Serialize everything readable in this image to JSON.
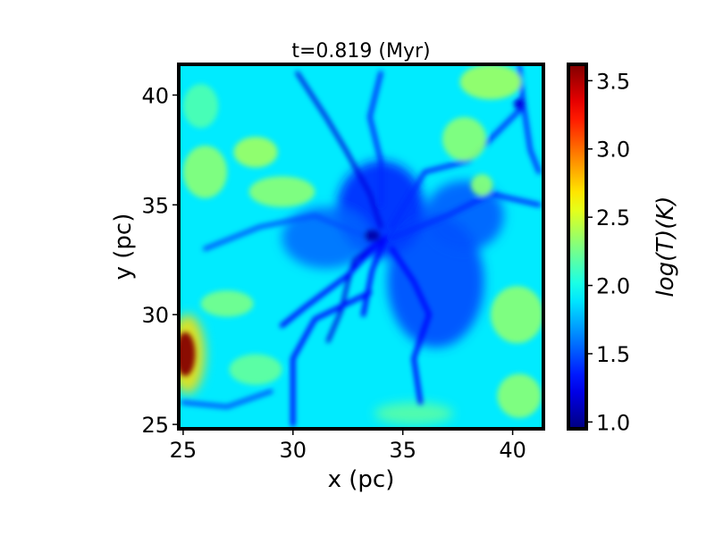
{
  "chart_data": {
    "type": "heatmap",
    "title": "t=0.819 (Myr)",
    "xlabel": "x (pc)",
    "ylabel": "y (pc)",
    "xlim": [
      24.8,
      41.4
    ],
    "ylim": [
      24.8,
      41.4
    ],
    "xticks": [
      25,
      30,
      35,
      40
    ],
    "yticks": [
      25,
      30,
      35,
      40
    ],
    "colorbar": {
      "label": "log(T)(K)",
      "range": [
        0.95,
        3.62
      ],
      "ticks": [
        1.0,
        1.5,
        2.0,
        2.5,
        3.0,
        3.5
      ],
      "colormap": "jet"
    },
    "grid": false,
    "background_level": 1.9,
    "features": [
      {
        "kind": "filament",
        "level": 1.2,
        "points": [
          [
            30.2,
            41.0
          ],
          [
            31.5,
            39.0
          ],
          [
            32.4,
            37.5
          ],
          [
            33.5,
            35.5
          ],
          [
            34.0,
            34.0
          ]
        ]
      },
      {
        "kind": "filament",
        "level": 1.2,
        "points": [
          [
            34.2,
            33.5
          ],
          [
            33.5,
            33.0
          ],
          [
            32.8,
            32.5
          ],
          [
            32.5,
            31.5
          ],
          [
            32.2,
            30.2
          ],
          [
            31.6,
            28.8
          ]
        ]
      },
      {
        "kind": "filament",
        "level": 1.3,
        "points": [
          [
            34.2,
            33.5
          ],
          [
            33.6,
            32.0
          ],
          [
            33.2,
            30.0
          ]
        ]
      },
      {
        "kind": "filament",
        "level": 1.3,
        "points": [
          [
            33.8,
            33.2
          ],
          [
            32.5,
            31.8
          ],
          [
            30.5,
            30.3
          ],
          [
            29.5,
            29.5
          ]
        ]
      },
      {
        "kind": "filament",
        "level": 1.3,
        "points": [
          [
            33.5,
            31.0
          ],
          [
            31.0,
            29.8
          ],
          [
            30.0,
            28.0
          ],
          [
            30.0,
            25.0
          ]
        ]
      },
      {
        "kind": "filament",
        "level": 1.3,
        "points": [
          [
            34.5,
            33.0
          ],
          [
            35.5,
            31.5
          ],
          [
            36.2,
            30.0
          ],
          [
            35.5,
            28.0
          ],
          [
            35.8,
            26.0
          ]
        ]
      },
      {
        "kind": "filament",
        "level": 1.4,
        "points": [
          [
            34.0,
            35.0
          ],
          [
            34.0,
            37.0
          ],
          [
            33.5,
            39.0
          ],
          [
            34.0,
            41.0
          ]
        ]
      },
      {
        "kind": "filament",
        "level": 1.4,
        "points": [
          [
            34.5,
            34.0
          ],
          [
            36.0,
            36.5
          ],
          [
            38.0,
            37.0
          ],
          [
            40.5,
            39.5
          ]
        ]
      },
      {
        "kind": "filament",
        "level": 1.4,
        "points": [
          [
            34.5,
            33.5
          ],
          [
            37.0,
            34.5
          ],
          [
            39.0,
            35.5
          ],
          [
            41.2,
            35.0
          ]
        ]
      },
      {
        "kind": "filament",
        "level": 1.4,
        "points": [
          [
            40.3,
            41.3
          ],
          [
            40.5,
            39.5
          ],
          [
            40.8,
            37.5
          ],
          [
            41.2,
            36.5
          ]
        ]
      },
      {
        "kind": "filament",
        "level": 1.5,
        "points": [
          [
            33.5,
            33.5
          ],
          [
            31.0,
            34.5
          ],
          [
            28.5,
            34.0
          ],
          [
            26.0,
            33.0
          ]
        ]
      },
      {
        "kind": "filament",
        "level": 1.5,
        "points": [
          [
            25.0,
            26.0
          ],
          [
            27.0,
            25.8
          ],
          [
            29.0,
            26.5
          ]
        ]
      },
      {
        "kind": "blob",
        "level": 1.35,
        "cx": 34.0,
        "cy": 34.8,
        "rx": 2.0,
        "ry": 2.2
      },
      {
        "kind": "blob",
        "level": 1.45,
        "cx": 36.5,
        "cy": 31.5,
        "rx": 2.2,
        "ry": 3.0
      },
      {
        "kind": "blob",
        "level": 1.5,
        "cx": 37.8,
        "cy": 34.5,
        "rx": 1.8,
        "ry": 1.6
      },
      {
        "kind": "blob",
        "level": 1.55,
        "cx": 31.5,
        "cy": 33.5,
        "rx": 2.0,
        "ry": 1.4
      },
      {
        "kind": "blob",
        "level": 1.05,
        "cx": 33.6,
        "cy": 33.6,
        "rx": 0.35,
        "ry": 0.25
      },
      {
        "kind": "blob",
        "level": 1.2,
        "cx": 40.3,
        "cy": 39.6,
        "rx": 0.25,
        "ry": 0.25
      },
      {
        "kind": "blob",
        "level": 2.35,
        "cx": 28.3,
        "cy": 37.4,
        "rx": 1.0,
        "ry": 0.7
      },
      {
        "kind": "blob",
        "level": 2.35,
        "cx": 39.0,
        "cy": 40.6,
        "rx": 1.4,
        "ry": 0.8
      },
      {
        "kind": "blob",
        "level": 2.3,
        "cx": 26.0,
        "cy": 36.5,
        "rx": 1.0,
        "ry": 1.2
      },
      {
        "kind": "blob",
        "level": 2.3,
        "cx": 29.5,
        "cy": 35.6,
        "rx": 1.5,
        "ry": 0.7
      },
      {
        "kind": "blob",
        "level": 2.3,
        "cx": 38.6,
        "cy": 35.9,
        "rx": 0.5,
        "ry": 0.5
      },
      {
        "kind": "blob",
        "level": 2.3,
        "cx": 40.2,
        "cy": 30.0,
        "rx": 1.2,
        "ry": 1.3
      },
      {
        "kind": "blob",
        "level": 2.3,
        "cx": 40.3,
        "cy": 26.3,
        "rx": 1.0,
        "ry": 1.0
      },
      {
        "kind": "blob",
        "level": 2.3,
        "cx": 37.8,
        "cy": 38.0,
        "rx": 1.0,
        "ry": 1.0
      },
      {
        "kind": "blob",
        "level": 2.25,
        "cx": 27.0,
        "cy": 30.5,
        "rx": 1.2,
        "ry": 0.6
      },
      {
        "kind": "blob",
        "level": 2.2,
        "cx": 28.3,
        "cy": 27.5,
        "rx": 1.2,
        "ry": 0.7
      },
      {
        "kind": "blob",
        "level": 2.2,
        "cx": 35.5,
        "cy": 25.5,
        "rx": 1.8,
        "ry": 0.5
      },
      {
        "kind": "blob",
        "level": 2.15,
        "cx": 25.8,
        "cy": 39.5,
        "rx": 0.8,
        "ry": 1.0
      },
      {
        "kind": "blob",
        "level": 3.6,
        "cx": 25.1,
        "cy": 28.2,
        "rx": 0.45,
        "ry": 1.0
      },
      {
        "kind": "blob",
        "level": 2.7,
        "cx": 25.2,
        "cy": 28.2,
        "rx": 0.8,
        "ry": 1.8
      }
    ]
  }
}
